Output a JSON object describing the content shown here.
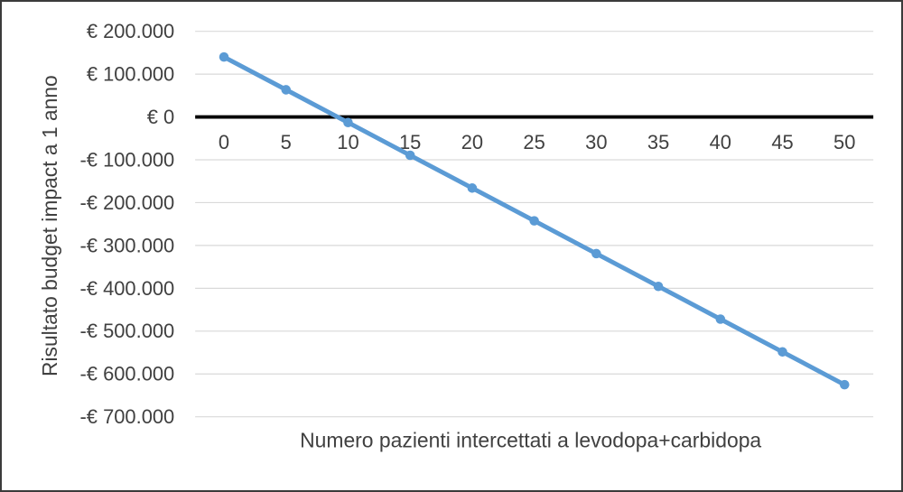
{
  "figure": {
    "background_color": "#ffffff",
    "border_color": "#3b3b3b"
  },
  "chart_data": {
    "type": "line",
    "title": "",
    "xlabel": "Numero pazienti intercettati a levodopa+carbidopa",
    "ylabel": "Risultato budget impact a 1 anno",
    "x": [
      0,
      5,
      10,
      15,
      20,
      25,
      30,
      35,
      40,
      45,
      50
    ],
    "series": [
      {
        "name": "Risultato budget impact a 1 anno",
        "values": [
          140000,
          63500,
          -13000,
          -89500,
          -166000,
          -242500,
          -319000,
          -395500,
          -472000,
          -548500,
          -625000
        ],
        "color": "#5B9BD5",
        "marker": "circle"
      }
    ],
    "xlim": [
      -2.3,
      52.3
    ],
    "ylim": [
      -700000,
      200000
    ],
    "ytick_step": 100000,
    "ytick_values": [
      200000,
      100000,
      0,
      -100000,
      -200000,
      -300000,
      -400000,
      -500000,
      -600000,
      -700000
    ],
    "ytick_labels": [
      "€ 200.000",
      "€ 100.000",
      "€ 0",
      "-€ 100.000",
      "-€ 200.000",
      "-€ 300.000",
      "-€ 400.000",
      "-€ 500.000",
      "-€ 600.000",
      "-€ 700.000"
    ],
    "xtick_labels": [
      "0",
      "5",
      "10",
      "15",
      "20",
      "25",
      "30",
      "35",
      "40",
      "45",
      "50"
    ],
    "grid": true,
    "legend": false,
    "zero_axis": true,
    "grid_color": "#D9D9D9",
    "zero_axis_color": "#000000",
    "text_color": "#404040"
  }
}
